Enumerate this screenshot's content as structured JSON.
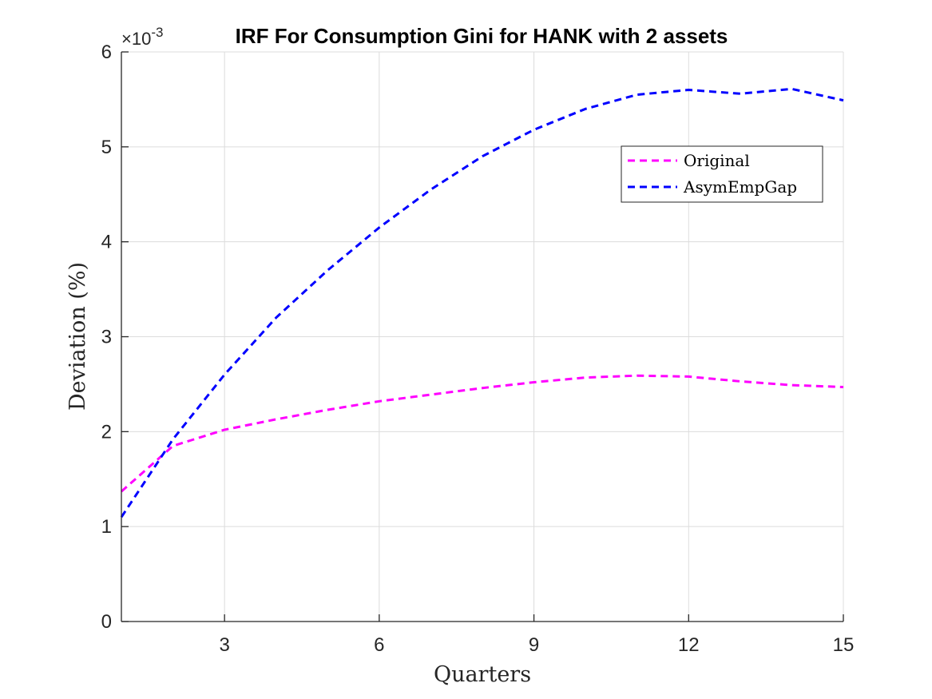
{
  "chart_data": {
    "type": "line",
    "title": "IRF For Consumption Gini for HANK with 2 assets",
    "xlabel": "Quarters",
    "ylabel": "Deviation (%)",
    "y_exponent_label": "×10",
    "y_exponent_power": "-3",
    "xlim": [
      1,
      15
    ],
    "ylim": [
      0,
      6
    ],
    "xticks": [
      3,
      6,
      9,
      12,
      15
    ],
    "yticks": [
      0,
      1,
      2,
      3,
      4,
      5,
      6
    ],
    "grid": true,
    "legend_position": "top-right",
    "x": [
      1,
      2,
      3,
      4,
      5,
      6,
      7,
      8,
      9,
      10,
      11,
      12,
      13,
      14,
      15
    ],
    "series": [
      {
        "name": "Original",
        "color": "#ff00ff",
        "line_style": "dashed",
        "values": [
          1.37,
          1.85,
          2.02,
          2.13,
          2.23,
          2.32,
          2.39,
          2.46,
          2.52,
          2.57,
          2.59,
          2.58,
          2.53,
          2.49,
          2.47
        ]
      },
      {
        "name": "AsymEmpGap",
        "color": "#0000ff",
        "line_style": "dashed",
        "values": [
          1.1,
          1.92,
          2.6,
          3.2,
          3.7,
          4.15,
          4.55,
          4.9,
          5.18,
          5.4,
          5.55,
          5.6,
          5.56,
          5.61,
          5.49
        ]
      }
    ]
  }
}
